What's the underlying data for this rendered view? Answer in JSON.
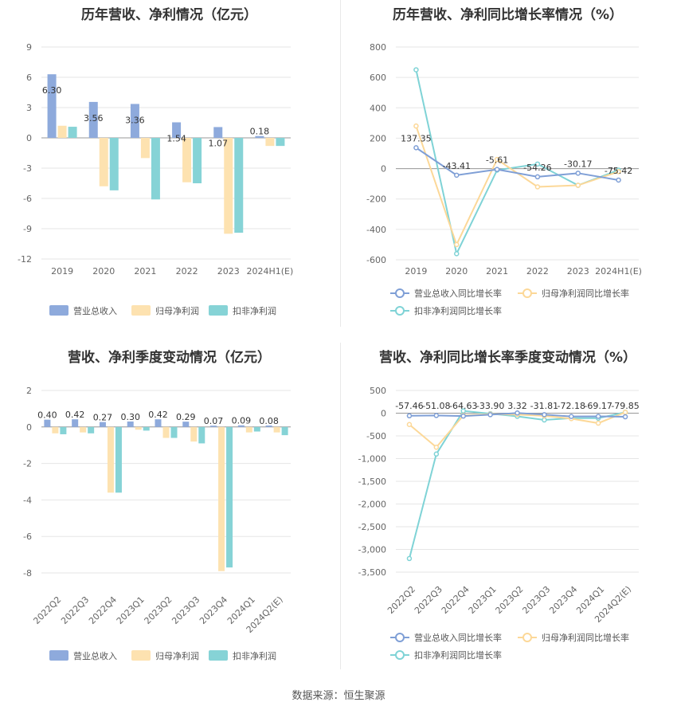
{
  "source_label": "数据来源：恒生聚源",
  "colors": {
    "revenue": "#8eaadc",
    "net_profit": "#fde2b0",
    "deducted_net_profit": "#86d3d6",
    "revenue_line": "#7f9fd6",
    "net_profit_line": "#fcd898",
    "deducted_line": "#7fd3d6"
  },
  "chart_data": [
    {
      "id": "annual-amount",
      "type": "bar",
      "title": "历年营收、净利情况（亿元）",
      "categories": [
        "2019",
        "2020",
        "2021",
        "2022",
        "2023",
        "2024H1(E)"
      ],
      "series": [
        {
          "name": "营业总收入",
          "values": [
            6.3,
            3.56,
            3.36,
            1.54,
            1.07,
            0.18
          ]
        },
        {
          "name": "归母净利润",
          "values": [
            1.2,
            -4.8,
            -2.0,
            -4.4,
            -9.5,
            -0.8
          ]
        },
        {
          "name": "扣非净利润",
          "values": [
            1.1,
            -5.2,
            -6.1,
            -4.5,
            -9.4,
            -0.8
          ]
        }
      ],
      "data_labels": [
        "6.30",
        "3.56",
        "3.36",
        "1.54",
        "1.07",
        "0.18"
      ],
      "yticks": [
        "9",
        "6",
        "3",
        "0",
        "-3",
        "-6",
        "-9",
        "-12"
      ],
      "ylim": [
        -12,
        9
      ],
      "grid": true,
      "legend": "bottom"
    },
    {
      "id": "annual-growth",
      "type": "line",
      "title": "历年营收、净利同比增长率情况（%）",
      "categories": [
        "2019",
        "2020",
        "2021",
        "2022",
        "2023",
        "2024H1(E)"
      ],
      "series": [
        {
          "name": "营业总收入同比增长率",
          "values": [
            137.35,
            -43.41,
            -5.61,
            -54.26,
            -30.17,
            -75.42
          ]
        },
        {
          "name": "归母净利润同比增长率",
          "values": [
            280,
            -500,
            60,
            -120,
            -110,
            -20
          ]
        },
        {
          "name": "扣非净利润同比增长率",
          "values": [
            650,
            -560,
            -10,
            30,
            -110,
            -10
          ]
        }
      ],
      "data_labels": [
        "137.35",
        "-43.41",
        "-5.61",
        "-54.26",
        "-30.17",
        "-75.42"
      ],
      "yticks": [
        "800",
        "600",
        "400",
        "200",
        "0",
        "-200",
        "-400",
        "-600"
      ],
      "ylim": [
        -600,
        800
      ],
      "grid": true,
      "legend": "bottom"
    },
    {
      "id": "quarterly-amount",
      "type": "bar",
      "title": "营收、净利季度变动情况（亿元）",
      "categories": [
        "2022Q2",
        "2022Q3",
        "2022Q4",
        "2023Q1",
        "2023Q2",
        "2023Q3",
        "2023Q4",
        "2024Q1",
        "2024Q2(E)"
      ],
      "series": [
        {
          "name": "营业总收入",
          "values": [
            0.4,
            0.42,
            0.27,
            0.3,
            0.42,
            0.29,
            0.07,
            0.09,
            0.08
          ]
        },
        {
          "name": "归母净利润",
          "values": [
            -0.35,
            -0.3,
            -3.6,
            -0.15,
            -0.6,
            -0.8,
            -7.9,
            -0.3,
            -0.3
          ]
        },
        {
          "name": "扣非净利润",
          "values": [
            -0.4,
            -0.35,
            -3.6,
            -0.2,
            -0.6,
            -0.9,
            -7.7,
            -0.25,
            -0.45
          ]
        }
      ],
      "data_labels": [
        "0.40",
        "0.42",
        "0.27",
        "0.30",
        "0.42",
        "0.29",
        "0.07",
        "0.09",
        "0.08"
      ],
      "yticks": [
        "2",
        "0",
        "-2",
        "-4",
        "-6",
        "-8"
      ],
      "ylim": [
        -8,
        2
      ],
      "grid": true,
      "legend": "bottom"
    },
    {
      "id": "quarterly-growth",
      "type": "line",
      "title": "营收、净利同比增长率季度变动情况（%）",
      "categories": [
        "2022Q2",
        "2022Q3",
        "2022Q4",
        "2023Q1",
        "2023Q2",
        "2023Q3",
        "2023Q4",
        "2024Q1",
        "2024Q2(E)"
      ],
      "series": [
        {
          "name": "营业总收入同比增长率",
          "values": [
            -57.46,
            -51.08,
            -64.63,
            -33.9,
            3.32,
            -31.81,
            -72.18,
            -69.17,
            -79.85
          ]
        },
        {
          "name": "归母净利润同比增长率",
          "values": [
            -250,
            -750,
            -50,
            -20,
            -30,
            -60,
            -120,
            -220,
            20
          ]
        },
        {
          "name": "扣非净利润同比增长率",
          "values": [
            -3200,
            -900,
            50,
            -10,
            -70,
            -150,
            -110,
            -110,
            20
          ]
        }
      ],
      "data_labels": [
        "-57.46",
        "-51.08",
        "-64.63",
        "-33.90",
        "3.32",
        "-31.81",
        "-72.18",
        "-69.17",
        "-79.85"
      ],
      "yticks": [
        "500",
        "0",
        "-500",
        "-1,000",
        "-1,500",
        "-2,000",
        "-2,500",
        "-3,000",
        "-3,500"
      ],
      "ylim": [
        -3500,
        500
      ],
      "grid": true,
      "legend": "bottom"
    }
  ]
}
